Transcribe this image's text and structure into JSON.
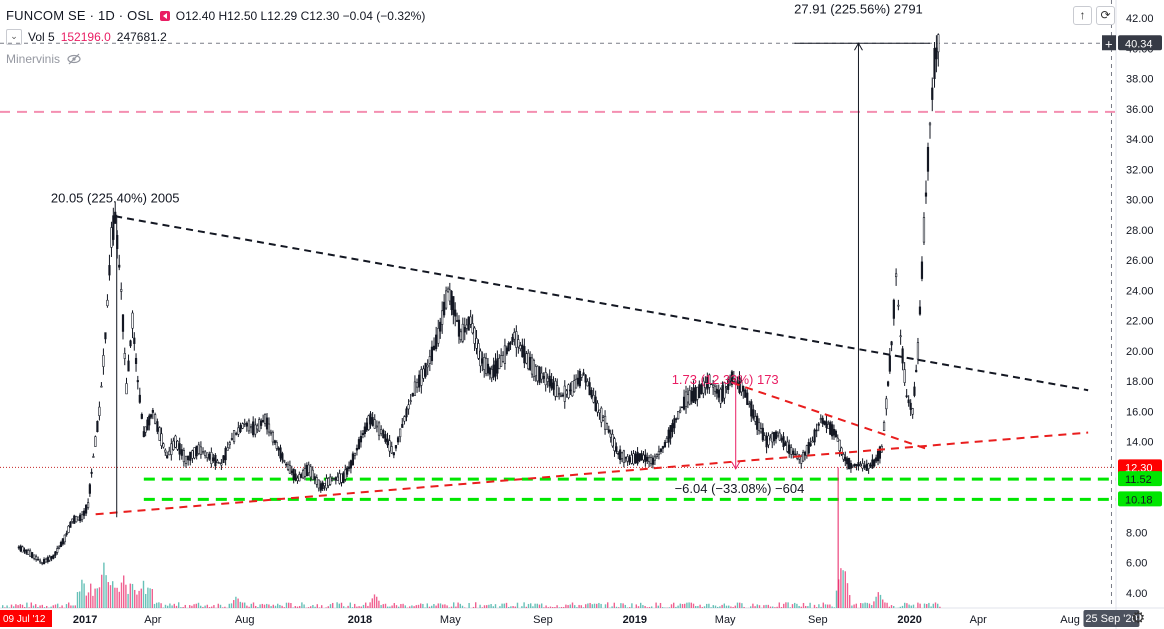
{
  "header": {
    "symbol": "FUNCOM SE · 1D · OSL",
    "open": "O12.40",
    "high": "H12.50",
    "low": "L12.29",
    "close": "C12.30",
    "change": "−0.04 (−0.32%)"
  },
  "volume_row": {
    "label": "Vol 5",
    "value_a": "152196.0",
    "value_b": "247681.2"
  },
  "indicator": {
    "label": "Minervinis"
  },
  "toolbar": {
    "up_icon": "↑",
    "reset_icon": "⟳"
  },
  "settings": {
    "gear_icon": "⚙"
  },
  "colors": {
    "up": "#26a69a",
    "down": "#ef5350",
    "green_level": "#00e600",
    "red_trend": "#e91e1e",
    "price_tag": "#ff0000"
  },
  "chart_data": {
    "type": "candlestick",
    "ylim": [
      3.0,
      43.2
    ],
    "y_ticks": [
      "4.00",
      "6.00",
      "8.00",
      "10.00",
      "12.00",
      "14.00",
      "16.00",
      "18.00",
      "20.00",
      "22.00",
      "24.00",
      "26.00",
      "28.00",
      "30.00",
      "32.00",
      "34.00",
      "36.00",
      "38.00",
      "40.00",
      "42.00"
    ],
    "x_ticks": [
      {
        "label": "2017",
        "date": "2017-01-01"
      },
      {
        "label": "Apr",
        "date": "2017-04-01"
      },
      {
        "label": "Aug",
        "date": "2017-08-01"
      },
      {
        "label": "2018",
        "date": "2018-01-01"
      },
      {
        "label": "May",
        "date": "2018-05-01"
      },
      {
        "label": "Sep",
        "date": "2018-09-01"
      },
      {
        "label": "2019",
        "date": "2019-01-01"
      },
      {
        "label": "May",
        "date": "2019-05-01"
      },
      {
        "label": "Sep",
        "date": "2019-09-01"
      },
      {
        "label": "2020",
        "date": "2020-01-01"
      },
      {
        "label": "Apr",
        "date": "2020-04-01"
      },
      {
        "label": "Aug",
        "date": "2020-08-01"
      }
    ],
    "x_cursor_label": "25 Sep '20",
    "x_left_label": "09 Jul '12",
    "price_labels": [
      {
        "value": 40.34,
        "text": "40.34",
        "style": "dark"
      },
      {
        "value": 12.3,
        "text": "12.30",
        "style": "red"
      },
      {
        "value": 11.52,
        "text": "11.52",
        "style": "green"
      },
      {
        "value": 10.18,
        "text": "10.18",
        "style": "green"
      }
    ],
    "horizontal_levels": [
      {
        "value": 40.34,
        "style": "gray-dash"
      },
      {
        "value": 35.8,
        "style": "pink-dash"
      },
      {
        "value": 12.3,
        "style": "red-dot"
      },
      {
        "value": 11.52,
        "style": "green-dash"
      },
      {
        "value": 10.18,
        "style": "green-dash"
      }
    ],
    "price_path": [
      [
        "2016-10-05",
        7.0
      ],
      [
        "2016-10-20",
        6.6
      ],
      [
        "2016-11-05",
        6.0
      ],
      [
        "2016-11-20",
        6.4
      ],
      [
        "2016-12-05",
        7.6
      ],
      [
        "2016-12-15",
        8.8
      ],
      [
        "2016-12-28",
        9.0
      ],
      [
        "2017-01-05",
        9.8
      ],
      [
        "2017-01-12",
        13.0
      ],
      [
        "2017-01-20",
        16.0
      ],
      [
        "2017-01-28",
        21.0
      ],
      [
        "2017-02-05",
        27.5
      ],
      [
        "2017-02-10",
        28.8
      ],
      [
        "2017-02-18",
        24.0
      ],
      [
        "2017-02-25",
        17.5
      ],
      [
        "2017-03-05",
        22.0
      ],
      [
        "2017-03-12",
        18.0
      ],
      [
        "2017-03-20",
        14.5
      ],
      [
        "2017-04-01",
        16.0
      ],
      [
        "2017-04-10",
        14.5
      ],
      [
        "2017-04-20",
        13.0
      ],
      [
        "2017-05-01",
        14.0
      ],
      [
        "2017-05-15",
        12.8
      ],
      [
        "2017-06-01",
        13.5
      ],
      [
        "2017-06-15",
        13.0
      ],
      [
        "2017-07-01",
        12.5
      ],
      [
        "2017-07-15",
        14.2
      ],
      [
        "2017-08-01",
        15.2
      ],
      [
        "2017-08-15",
        14.8
      ],
      [
        "2017-08-28",
        15.5
      ],
      [
        "2017-09-10",
        14.0
      ],
      [
        "2017-09-25",
        12.5
      ],
      [
        "2017-10-10",
        11.5
      ],
      [
        "2017-10-25",
        12.2
      ],
      [
        "2017-11-10",
        11.0
      ],
      [
        "2017-11-25",
        11.5
      ],
      [
        "2017-12-10",
        11.6
      ],
      [
        "2017-12-20",
        12.5
      ],
      [
        "2018-01-05",
        14.5
      ],
      [
        "2018-01-15",
        15.5
      ],
      [
        "2018-02-01",
        14.5
      ],
      [
        "2018-02-15",
        13.2
      ],
      [
        "2018-03-01",
        15.5
      ],
      [
        "2018-03-15",
        17.5
      ],
      [
        "2018-04-01",
        19.0
      ],
      [
        "2018-04-15",
        21.0
      ],
      [
        "2018-04-28",
        24.0
      ],
      [
        "2018-05-05",
        23.0
      ],
      [
        "2018-05-15",
        21.0
      ],
      [
        "2018-05-28",
        22.0
      ],
      [
        "2018-06-10",
        19.5
      ],
      [
        "2018-06-25",
        18.5
      ],
      [
        "2018-07-10",
        19.5
      ],
      [
        "2018-07-25",
        21.0
      ],
      [
        "2018-08-10",
        19.5
      ],
      [
        "2018-08-25",
        18.5
      ],
      [
        "2018-09-10",
        18.0
      ],
      [
        "2018-09-25",
        17.0
      ],
      [
        "2018-10-10",
        17.5
      ],
      [
        "2018-10-25",
        18.5
      ],
      [
        "2018-11-10",
        16.5
      ],
      [
        "2018-11-25",
        15.0
      ],
      [
        "2018-12-10",
        13.2
      ],
      [
        "2018-12-25",
        12.8
      ],
      [
        "2019-01-10",
        13.0
      ],
      [
        "2019-01-25",
        12.7
      ],
      [
        "2019-02-10",
        13.8
      ],
      [
        "2019-02-25",
        15.5
      ],
      [
        "2019-03-10",
        16.8
      ],
      [
        "2019-03-25",
        17.2
      ],
      [
        "2019-04-10",
        18.0
      ],
      [
        "2019-04-25",
        17.0
      ],
      [
        "2019-05-10",
        18.2
      ],
      [
        "2019-05-25",
        17.5
      ],
      [
        "2019-06-10",
        15.5
      ],
      [
        "2019-06-25",
        14.0
      ],
      [
        "2019-07-10",
        14.5
      ],
      [
        "2019-07-25",
        13.5
      ],
      [
        "2019-08-10",
        12.8
      ],
      [
        "2019-08-25",
        14.0
      ],
      [
        "2019-09-05",
        15.5
      ],
      [
        "2019-09-15",
        15.0
      ],
      [
        "2019-09-25",
        14.5
      ],
      [
        "2019-10-05",
        13.0
      ],
      [
        "2019-10-15",
        12.4
      ],
      [
        "2019-10-25",
        12.5
      ],
      [
        "2019-11-05",
        12.3
      ],
      [
        "2019-11-15",
        12.6
      ],
      [
        "2019-11-25",
        13.5
      ],
      [
        "2019-12-01",
        16.5
      ],
      [
        "2019-12-08",
        20.5
      ],
      [
        "2019-12-14",
        25.0
      ],
      [
        "2019-12-20",
        21.0
      ],
      [
        "2019-12-28",
        17.0
      ],
      [
        "2020-01-05",
        16.0
      ],
      [
        "2020-01-12",
        20.0
      ],
      [
        "2020-01-20",
        28.0
      ],
      [
        "2020-01-28",
        35.0
      ],
      [
        "2020-02-03",
        39.0
      ],
      [
        "2020-02-08",
        40.34
      ]
    ],
    "annotations": [
      {
        "text": "20.05 (225.40%) 2005",
        "date": "2017-02-10",
        "value": 29.8,
        "color": "#131722"
      },
      {
        "text": "27.91 (225.56%) 2791",
        "date": "2019-10-25",
        "value": 42.3,
        "color": "#131722"
      },
      {
        "text": "−6.04 (−33.08%) −604",
        "date": "2019-05-20",
        "value": 10.6,
        "color": "#131722"
      },
      {
        "text": "1.73 (12.33%) 173",
        "date": "2019-05-01",
        "value": 17.8,
        "color": "#e91e63"
      }
    ],
    "trend_lines": [
      {
        "name": "black-down",
        "color": "#131722",
        "dash": "7,5",
        "points": [
          [
            "2017-02-10",
            28.9
          ],
          [
            "2020-08-25",
            17.4
          ]
        ]
      },
      {
        "name": "red-up",
        "color": "#e91e1e",
        "dash": "8,6",
        "points": [
          [
            "2017-01-15",
            9.2
          ],
          [
            "2020-08-25",
            14.6
          ]
        ]
      },
      {
        "name": "red-down",
        "color": "#e91e1e",
        "dash": "8,6",
        "points": [
          [
            "2019-05-10",
            17.9
          ],
          [
            "2020-01-25",
            13.5
          ]
        ]
      }
    ],
    "measure_lines": [
      {
        "color": "#131722",
        "points": [
          [
            "2017-02-12",
            29.0
          ],
          [
            "2017-02-12",
            9.0
          ]
        ]
      },
      {
        "color": "#131722",
        "points": [
          [
            "2019-10-25",
            40.34
          ],
          [
            "2019-10-25",
            12.3
          ]
        ]
      },
      {
        "color": "#131722",
        "points": [
          [
            "2019-08-01",
            40.34
          ],
          [
            "2020-01-28",
            40.34
          ]
        ]
      },
      {
        "color": "#e91e63",
        "points": [
          [
            "2019-05-15",
            17.9
          ],
          [
            "2019-05-15",
            12.2
          ]
        ]
      },
      {
        "color": "#e91e63",
        "points": [
          [
            "2019-09-28",
            12.3
          ],
          [
            "2019-09-28",
            3.0
          ]
        ]
      }
    ],
    "green_level_extent": [
      [
        "2017-03-20",
        "2020-09-25"
      ]
    ],
    "volume": {
      "note": "volume histogram at bottom, spikes around Jan-Feb 2017 and Oct 2019",
      "spikes": [
        [
          "2017-01-25",
          0.95
        ],
        [
          "2017-02-05",
          0.6
        ],
        [
          "2017-02-20",
          0.7
        ],
        [
          "2019-10-01",
          0.85
        ],
        [
          "2019-10-05",
          0.9
        ],
        [
          "2019-11-20",
          0.35
        ],
        [
          "2017-07-20",
          0.25
        ],
        [
          "2018-01-20",
          0.3
        ]
      ]
    }
  }
}
